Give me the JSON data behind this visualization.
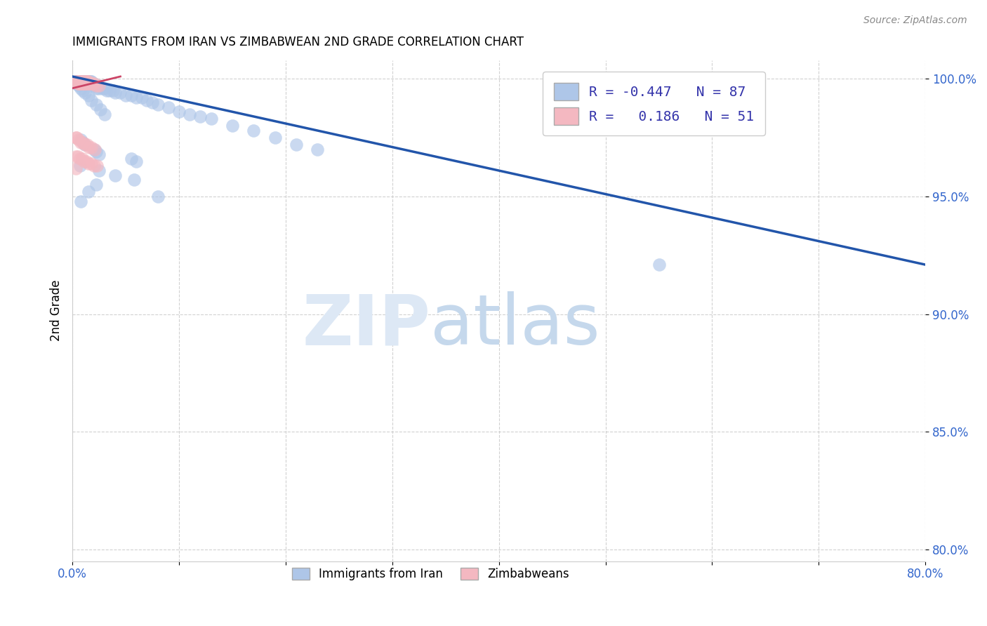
{
  "title": "IMMIGRANTS FROM IRAN VS ZIMBABWEAN 2ND GRADE CORRELATION CHART",
  "source": "Source: ZipAtlas.com",
  "ylabel": "2nd Grade",
  "xlim": [
    0.0,
    0.8
  ],
  "ylim": [
    0.795,
    1.008
  ],
  "xtick_labels": [
    "0.0%",
    "",
    "",
    "",
    "",
    "",
    "",
    "",
    "80.0%"
  ],
  "xtick_vals": [
    0.0,
    0.1,
    0.2,
    0.3,
    0.4,
    0.5,
    0.6,
    0.7,
    0.8
  ],
  "ytick_right_labels": [
    "100.0%",
    "95.0%",
    "90.0%",
    "85.0%",
    "80.0%"
  ],
  "ytick_vals": [
    1.0,
    0.95,
    0.9,
    0.85,
    0.8
  ],
  "iran_color": "#aec6e8",
  "zimb_color": "#f4b8c1",
  "iran_line_color": "#2255aa",
  "zimb_line_color": "#cc4466",
  "iran_line_x": [
    0.0,
    0.8
  ],
  "iran_line_y": [
    1.001,
    0.921
  ],
  "zimb_line_x": [
    0.0,
    0.045
  ],
  "zimb_line_y": [
    0.996,
    1.001
  ],
  "iran_scatter_x": [
    0.003,
    0.004,
    0.005,
    0.005,
    0.006,
    0.006,
    0.007,
    0.007,
    0.008,
    0.008,
    0.009,
    0.009,
    0.01,
    0.01,
    0.011,
    0.011,
    0.012,
    0.012,
    0.013,
    0.013,
    0.014,
    0.014,
    0.015,
    0.015,
    0.016,
    0.016,
    0.017,
    0.017,
    0.018,
    0.018,
    0.02,
    0.02,
    0.022,
    0.022,
    0.025,
    0.025,
    0.028,
    0.03,
    0.032,
    0.035,
    0.038,
    0.04,
    0.045,
    0.05,
    0.055,
    0.06,
    0.065,
    0.07,
    0.075,
    0.08,
    0.09,
    0.1,
    0.11,
    0.12,
    0.13,
    0.15,
    0.17,
    0.19,
    0.21,
    0.23,
    0.004,
    0.006,
    0.008,
    0.01,
    0.012,
    0.015,
    0.018,
    0.022,
    0.026,
    0.03,
    0.008,
    0.01,
    0.012,
    0.02,
    0.022,
    0.025,
    0.055,
    0.06,
    0.007,
    0.025,
    0.04,
    0.058,
    0.022,
    0.55,
    0.015,
    0.08,
    0.008
  ],
  "iran_scatter_y": [
    0.999,
    0.999,
    0.999,
    0.998,
    0.999,
    0.998,
    0.999,
    0.998,
    0.999,
    0.998,
    0.999,
    0.998,
    0.999,
    0.998,
    0.999,
    0.998,
    0.999,
    0.998,
    0.999,
    0.998,
    0.999,
    0.998,
    0.999,
    0.998,
    0.999,
    0.998,
    0.999,
    0.998,
    0.999,
    0.998,
    0.998,
    0.997,
    0.997,
    0.996,
    0.997,
    0.996,
    0.996,
    0.996,
    0.995,
    0.995,
    0.995,
    0.994,
    0.994,
    0.993,
    0.993,
    0.992,
    0.992,
    0.991,
    0.99,
    0.989,
    0.988,
    0.986,
    0.985,
    0.984,
    0.983,
    0.98,
    0.978,
    0.975,
    0.972,
    0.97,
    0.998,
    0.997,
    0.996,
    0.995,
    0.994,
    0.993,
    0.991,
    0.989,
    0.987,
    0.985,
    0.974,
    0.973,
    0.972,
    0.97,
    0.969,
    0.968,
    0.966,
    0.965,
    0.963,
    0.961,
    0.959,
    0.957,
    0.955,
    0.921,
    0.952,
    0.95,
    0.948
  ],
  "zimb_scatter_x": [
    0.003,
    0.004,
    0.005,
    0.005,
    0.006,
    0.006,
    0.007,
    0.007,
    0.008,
    0.008,
    0.009,
    0.009,
    0.01,
    0.01,
    0.011,
    0.011,
    0.012,
    0.012,
    0.013,
    0.013,
    0.014,
    0.014,
    0.015,
    0.016,
    0.017,
    0.018,
    0.019,
    0.02,
    0.022,
    0.025,
    0.003,
    0.004,
    0.006,
    0.008,
    0.01,
    0.012,
    0.014,
    0.016,
    0.018,
    0.021,
    0.003,
    0.005,
    0.007,
    0.009,
    0.011,
    0.013,
    0.015,
    0.018,
    0.02,
    0.023,
    0.003
  ],
  "zimb_scatter_y": [
    0.999,
    0.999,
    0.999,
    0.998,
    0.999,
    0.998,
    0.999,
    0.998,
    0.999,
    0.998,
    0.999,
    0.998,
    0.999,
    0.998,
    0.999,
    0.998,
    0.999,
    0.998,
    0.999,
    0.998,
    0.999,
    0.998,
    0.999,
    0.998,
    0.998,
    0.998,
    0.998,
    0.998,
    0.997,
    0.997,
    0.975,
    0.975,
    0.974,
    0.973,
    0.973,
    0.972,
    0.972,
    0.971,
    0.971,
    0.97,
    0.967,
    0.967,
    0.966,
    0.966,
    0.965,
    0.965,
    0.964,
    0.964,
    0.963,
    0.963,
    0.962
  ]
}
